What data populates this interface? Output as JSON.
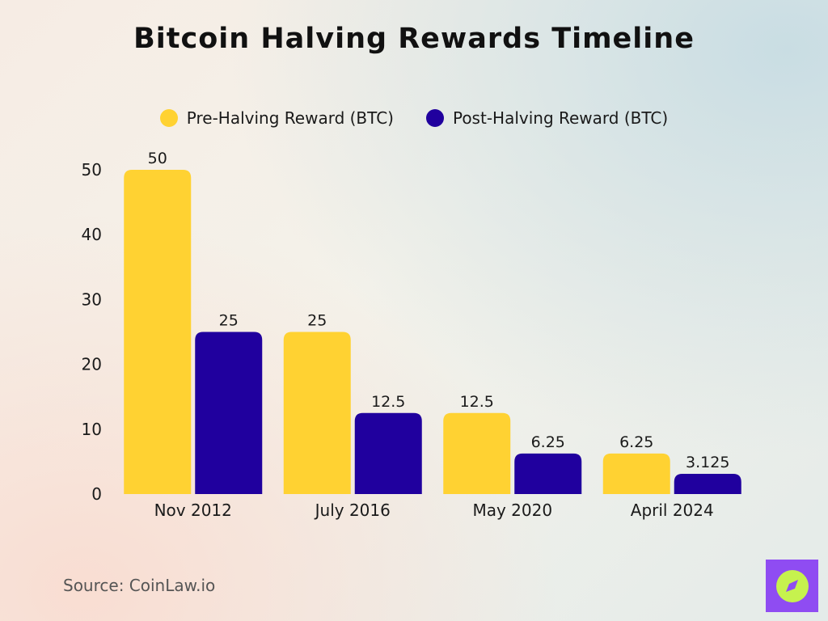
{
  "title": "Bitcoin Halving Rewards Timeline",
  "source": "Source: CoinLaw.io",
  "colors": {
    "pre": "#FFD232",
    "post": "#20009E",
    "logo_bg": "#8F4CF2",
    "logo_circle": "#C6F24E"
  },
  "chart_data": {
    "type": "bar",
    "title": "Bitcoin Halving Rewards Timeline",
    "xlabel": "",
    "ylabel": "",
    "categories": [
      "Nov 2012",
      "July 2016",
      "May 2020",
      "April 2024"
    ],
    "series": [
      {
        "name": "Pre-Halving Reward (BTC)",
        "values": [
          50,
          25,
          12.5,
          6.25
        ],
        "labels": [
          "50",
          "25",
          "12.5",
          "6.25"
        ],
        "color": "#FFD232"
      },
      {
        "name": "Post-Halving Reward (BTC)",
        "values": [
          25,
          12.5,
          6.25,
          3.125
        ],
        "labels": [
          "25",
          "12.5",
          "6.25",
          "3.125"
        ],
        "color": "#20009E"
      }
    ],
    "ylim": [
      0,
      50
    ],
    "yticks": [
      "0",
      "10",
      "20",
      "30",
      "40",
      "50"
    ],
    "grid": false,
    "legend": "top-center"
  }
}
